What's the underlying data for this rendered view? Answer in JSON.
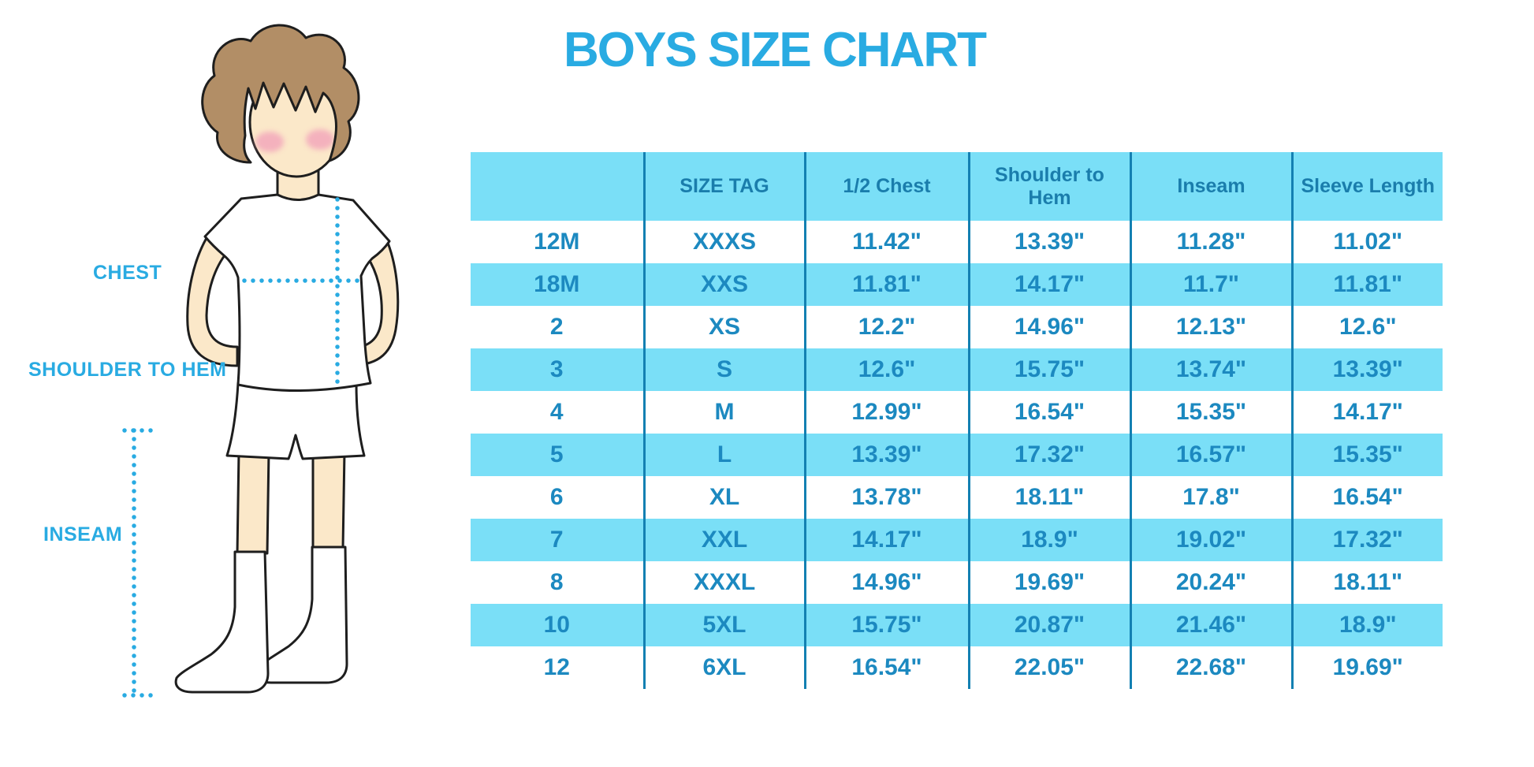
{
  "title": "BOYS SIZE CHART",
  "colors": {
    "accent_blue": "#29ABE2",
    "band_blue": "#7ADFF7",
    "line_blue": "#1380B2",
    "header_text_blue": "#1A7DAC",
    "cell_text_blue": "#1C89C0",
    "skin": "#FBE8C9",
    "hair": "#B28E66",
    "blush": "#F3A8BB",
    "outline": "#1E1E1E"
  },
  "figure": {
    "description": "boy-measurement-illustration",
    "labels": {
      "chest": "CHEST",
      "shoulder_to_hem": "SHOULDER TO HEM",
      "inseam": "INSEAM"
    }
  },
  "chart_data": {
    "type": "table",
    "title": "BOYS SIZE CHART",
    "columns": [
      "",
      "SIZE TAG",
      "1/2 Chest",
      "Shoulder to Hem",
      "Inseam",
      "Sleeve Length"
    ],
    "rows": [
      [
        "12M",
        "XXXS",
        "11.42\"",
        "13.39\"",
        "11.28\"",
        "11.02\""
      ],
      [
        "18M",
        "XXS",
        "11.81\"",
        "14.17\"",
        "11.7\"",
        "11.81\""
      ],
      [
        "2",
        "XS",
        "12.2\"",
        "14.96\"",
        "12.13\"",
        "12.6\""
      ],
      [
        "3",
        "S",
        "12.6\"",
        "15.75\"",
        "13.74\"",
        "13.39\""
      ],
      [
        "4",
        "M",
        "12.99\"",
        "16.54\"",
        "15.35\"",
        "14.17\""
      ],
      [
        "5",
        "L",
        "13.39\"",
        "17.32\"",
        "16.57\"",
        "15.35\""
      ],
      [
        "6",
        "XL",
        "13.78\"",
        "18.11\"",
        "17.8\"",
        "16.54\""
      ],
      [
        "7",
        "XXL",
        "14.17\"",
        "18.9\"",
        "19.02\"",
        "17.32\""
      ],
      [
        "8",
        "XXXL",
        "14.96\"",
        "19.69\"",
        "20.24\"",
        "18.11\""
      ],
      [
        "10",
        "5XL",
        "15.75\"",
        "20.87\"",
        "21.46\"",
        "18.9\""
      ],
      [
        "12",
        "6XL",
        "16.54\"",
        "22.05\"",
        "22.68\"",
        "19.69\""
      ]
    ],
    "banded_row_indices": [
      1,
      3,
      5,
      7,
      9
    ],
    "legend_position": "none",
    "grid": "vertical-separators-only"
  }
}
